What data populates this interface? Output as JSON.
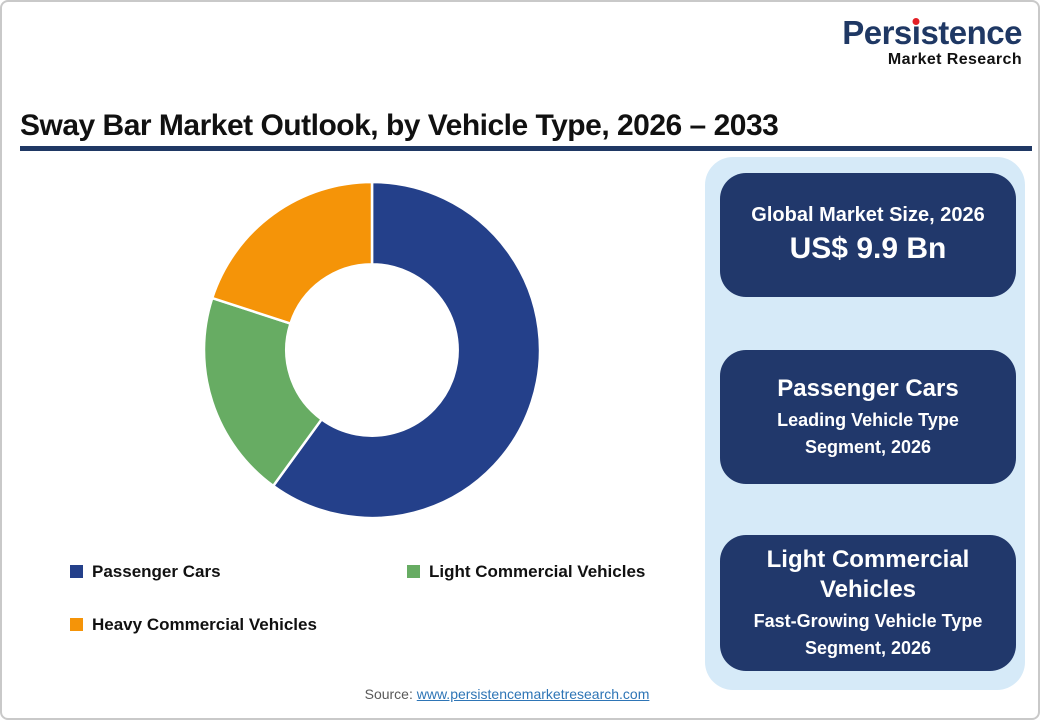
{
  "brand": {
    "logo_parts": {
      "pre": "Pers",
      "i_dotless": "ı",
      "post": "stence"
    },
    "subtitle": "Market Research",
    "logo_color": "#1F3864",
    "dot_color": "#E31F26"
  },
  "header": {
    "title": "Sway Bar Market Outlook, by Vehicle Type, 2026 – 2033",
    "rule_color": "#1F3864"
  },
  "chart_data": {
    "type": "pie",
    "subtype": "donut",
    "title": "Sway Bar Market Outlook, by Vehicle Type, 2026 – 2033",
    "categories": [
      "Passenger Cars",
      "Light Commercial Vehicles",
      "Heavy Commercial Vehicles"
    ],
    "values": [
      60,
      20,
      20
    ],
    "value_format": "percent share (estimated from arc angles)",
    "colors": [
      "#24408A",
      "#67AC63",
      "#F59408"
    ],
    "start_angle_deg": 0,
    "direction": "clockwise",
    "inner_radius_ratio": 0.51,
    "data_labels": "none",
    "legend_position": "bottom-left"
  },
  "side_panel": {
    "background_color": "#D6EAF8",
    "card_color": "#21386B",
    "cards": [
      {
        "line1": "Global Market Size, 2026",
        "line2": "US$ 9.9 Bn"
      },
      {
        "line1": "Passenger Cars",
        "line2": "Leading Vehicle Type Segment, 2026"
      },
      {
        "line1": "Light Commercial Vehicles",
        "line2": "Fast-Growing Vehicle Type Segment, 2026"
      }
    ]
  },
  "footer": {
    "source_label": "Source:",
    "source_link_text": "www.persistencemarketresearch.com",
    "link_color": "#2E75B6"
  }
}
